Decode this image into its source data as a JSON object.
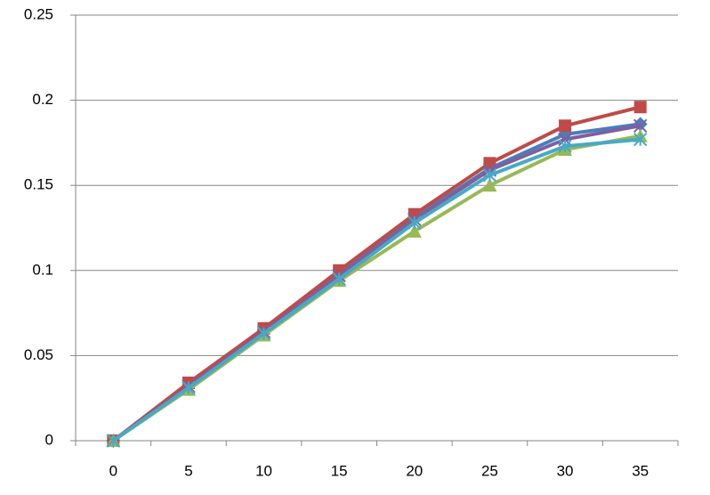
{
  "chart_data": {
    "type": "line",
    "categories": [
      "0",
      "5",
      "10",
      "15",
      "20",
      "25",
      "30",
      "35"
    ],
    "series": [
      {
        "color": "#4a7ebb",
        "marker": "diamond",
        "values": [
          0,
          0.032,
          0.065,
          0.098,
          0.131,
          0.16,
          0.18,
          0.186
        ]
      },
      {
        "color": "#be4b48",
        "marker": "square",
        "values": [
          0,
          0.034,
          0.066,
          0.1,
          0.133,
          0.163,
          0.185,
          0.196
        ]
      },
      {
        "color": "#98b954",
        "marker": "triangle",
        "values": [
          0,
          0.03,
          0.062,
          0.094,
          0.123,
          0.15,
          0.171,
          0.179
        ]
      },
      {
        "color": "#7d60a0",
        "marker": "x",
        "values": [
          0,
          0.032,
          0.064,
          0.097,
          0.13,
          0.159,
          0.177,
          0.185
        ]
      },
      {
        "color": "#46aac5",
        "marker": "star",
        "values": [
          0,
          0.031,
          0.063,
          0.095,
          0.128,
          0.156,
          0.173,
          0.177
        ]
      }
    ],
    "ylim": [
      0,
      0.25
    ],
    "yticks": [
      0,
      0.05,
      0.1,
      0.15,
      0.2,
      0.25
    ],
    "grid": true
  }
}
